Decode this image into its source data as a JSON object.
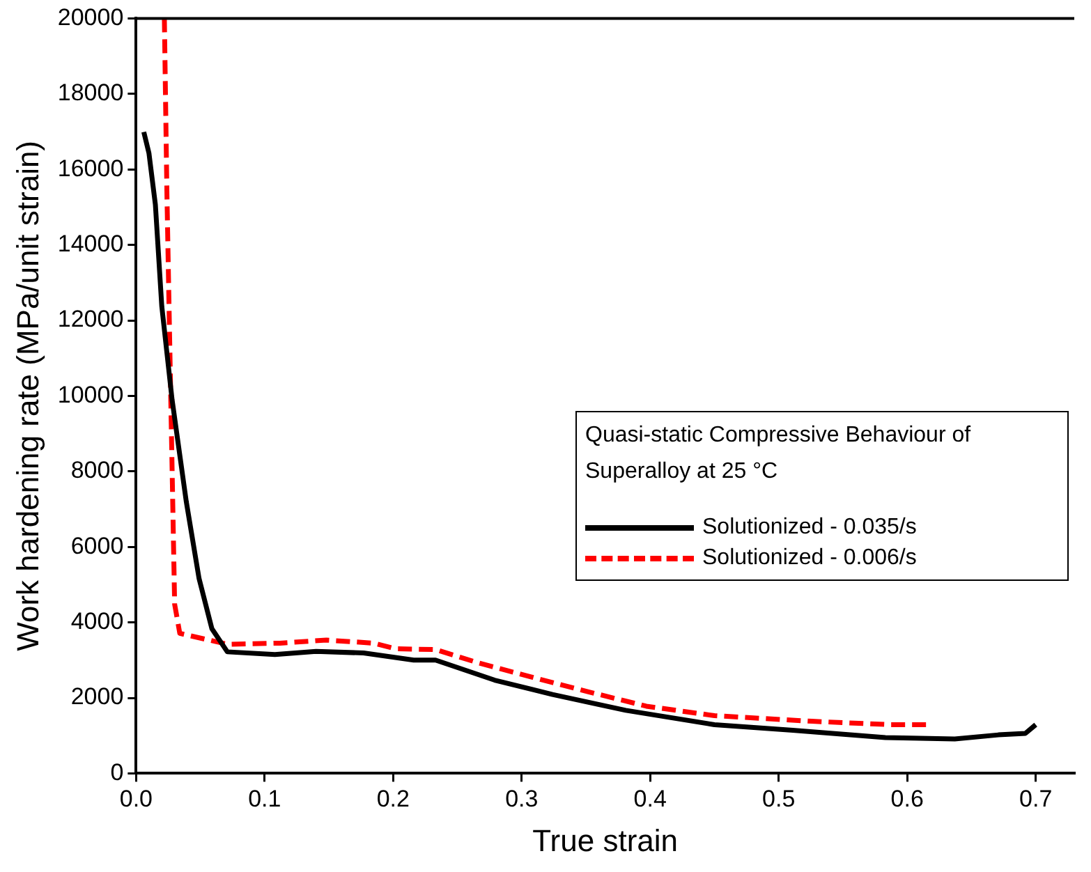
{
  "chart_data": {
    "type": "line",
    "xlabel": "True strain",
    "ylabel": "Work hardening rate (MPa/unit strain)",
    "legend_title": "Quasi-static Compressive Behaviour of Superalloy at 25 °C",
    "xlim": [
      0,
      0.73
    ],
    "xticks": [
      {
        "value": 0,
        "label": "0.0"
      },
      0.1,
      0.2,
      0.3,
      0.4,
      0.5,
      0.6,
      0.7
    ],
    "ylim": [
      0,
      20000
    ],
    "yticks": [
      0,
      2000,
      4000,
      6000,
      8000,
      10000,
      12000,
      14000,
      16000,
      18000,
      20000
    ],
    "grid": false,
    "legend": "right",
    "marker": "none",
    "series": [
      {
        "name": "Solutionized - 0.035/s",
        "color": "#000000",
        "line_style": "solid",
        "x": [
          0.006,
          0.01,
          0.015,
          0.02,
          0.028,
          0.039,
          0.049,
          0.059,
          0.071,
          0.108,
          0.14,
          0.177,
          0.216,
          0.233,
          0.279,
          0.324,
          0.381,
          0.45,
          0.511,
          0.583,
          0.637,
          0.671,
          0.692,
          0.7
        ],
        "values": [
          16990,
          16430,
          15070,
          12370,
          9900,
          7210,
          5160,
          3830,
          3220,
          3150,
          3230,
          3190,
          3000,
          3000,
          2470,
          2090,
          1670,
          1290,
          1140,
          950,
          910,
          1020,
          1060,
          1290
        ]
      },
      {
        "name": "Solutionized - 0.006/s",
        "color": "#ff0000",
        "line_style": "dashed",
        "x": [
          0.022,
          0.024,
          0.027,
          0.03,
          0.034,
          0.071,
          0.112,
          0.148,
          0.185,
          0.202,
          0.233,
          0.267,
          0.309,
          0.352,
          0.397,
          0.45,
          0.526,
          0.587,
          0.617
        ],
        "values": [
          20000,
          15330,
          9900,
          4480,
          3710,
          3420,
          3450,
          3530,
          3450,
          3300,
          3280,
          2920,
          2540,
          2160,
          1780,
          1530,
          1380,
          1290,
          1290
        ]
      }
    ]
  }
}
